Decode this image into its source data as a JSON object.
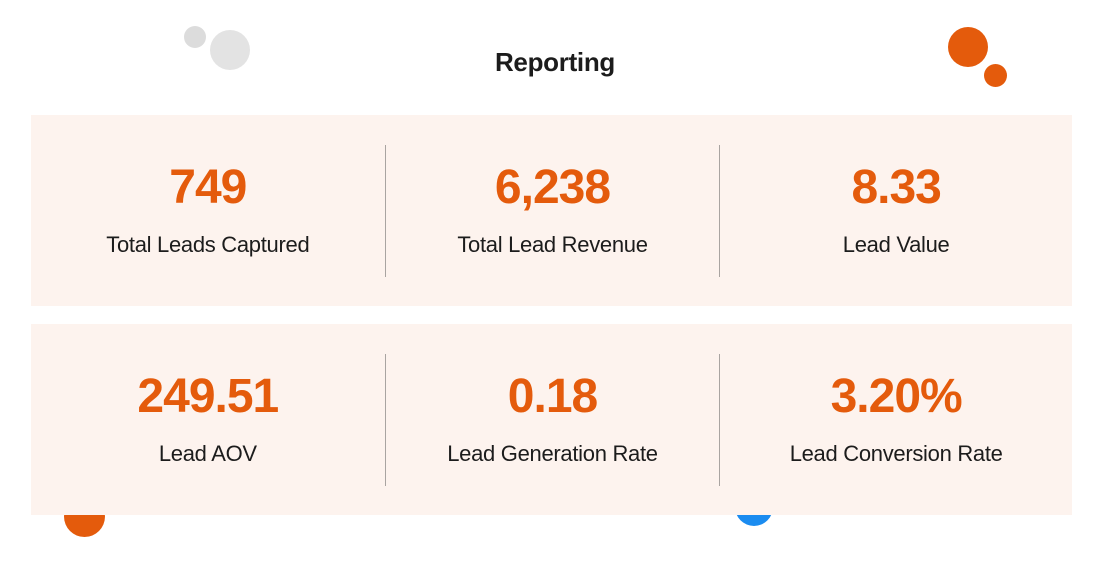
{
  "page": {
    "title": "Reporting"
  },
  "colors": {
    "accent": "#e45b0c",
    "panel_background": "#fdf3ee",
    "text": "#1c1c1c",
    "divider": "#a9a4a1",
    "decor_gray": "#e3e3e3",
    "decor_blue": "#1b8cf0"
  },
  "metrics_row_1": [
    {
      "value": "749",
      "label": "Total Leads Captured"
    },
    {
      "value": "6,238",
      "label": "Total Lead Revenue"
    },
    {
      "value": "8.33",
      "label": "Lead Value"
    }
  ],
  "metrics_row_2": [
    {
      "value": "249.51",
      "label": "Lead AOV"
    },
    {
      "value": "0.18",
      "label": "Lead Generation Rate"
    },
    {
      "value": "3.20%",
      "label": "Lead Conversion Rate"
    }
  ]
}
